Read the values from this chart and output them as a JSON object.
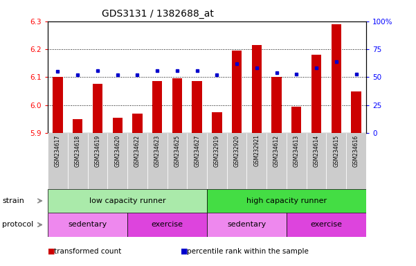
{
  "title": "GDS3131 / 1382688_at",
  "samples": [
    "GSM234617",
    "GSM234618",
    "GSM234619",
    "GSM234620",
    "GSM234622",
    "GSM234623",
    "GSM234625",
    "GSM234627",
    "GSM232919",
    "GSM232920",
    "GSM232921",
    "GSM234612",
    "GSM234613",
    "GSM234614",
    "GSM234615",
    "GSM234616"
  ],
  "red_values": [
    6.1,
    5.95,
    6.075,
    5.955,
    5.97,
    6.085,
    6.095,
    6.085,
    5.975,
    6.195,
    6.215,
    6.1,
    5.995,
    6.18,
    6.29,
    6.05
  ],
  "blue_values": [
    55,
    52,
    56,
    52,
    52,
    56,
    56,
    56,
    52,
    62,
    58,
    54,
    53,
    58,
    64,
    53
  ],
  "ylim_left": [
    5.9,
    6.3
  ],
  "ylim_right": [
    0,
    100
  ],
  "yticks_left": [
    5.9,
    6.0,
    6.1,
    6.2,
    6.3
  ],
  "yticks_right": [
    0,
    25,
    50,
    75,
    100
  ],
  "ytick_labels_right": [
    "0",
    "25",
    "50",
    "75",
    "100%"
  ],
  "bar_color": "#cc0000",
  "dot_color": "#0000cc",
  "strain_groups": [
    {
      "label": "low capacity runner",
      "start": 0,
      "end": 8,
      "color": "#aaeaaa"
    },
    {
      "label": "high capacity runner",
      "start": 8,
      "end": 16,
      "color": "#44dd44"
    }
  ],
  "protocol_groups": [
    {
      "label": "sedentary",
      "start": 0,
      "end": 4,
      "color": "#ee88ee"
    },
    {
      "label": "exercise",
      "start": 4,
      "end": 8,
      "color": "#dd44dd"
    },
    {
      "label": "sedentary",
      "start": 8,
      "end": 12,
      "color": "#ee88ee"
    },
    {
      "label": "exercise",
      "start": 12,
      "end": 16,
      "color": "#dd44dd"
    }
  ],
  "legend_items": [
    {
      "color": "#cc0000",
      "label": "transformed count"
    },
    {
      "color": "#0000cc",
      "label": "percentile rank within the sample"
    }
  ],
  "bar_width": 0.5,
  "background_color": "#ffffff",
  "xlabels_bg": "#cccccc",
  "strain_label": "strain",
  "protocol_label": "protocol"
}
